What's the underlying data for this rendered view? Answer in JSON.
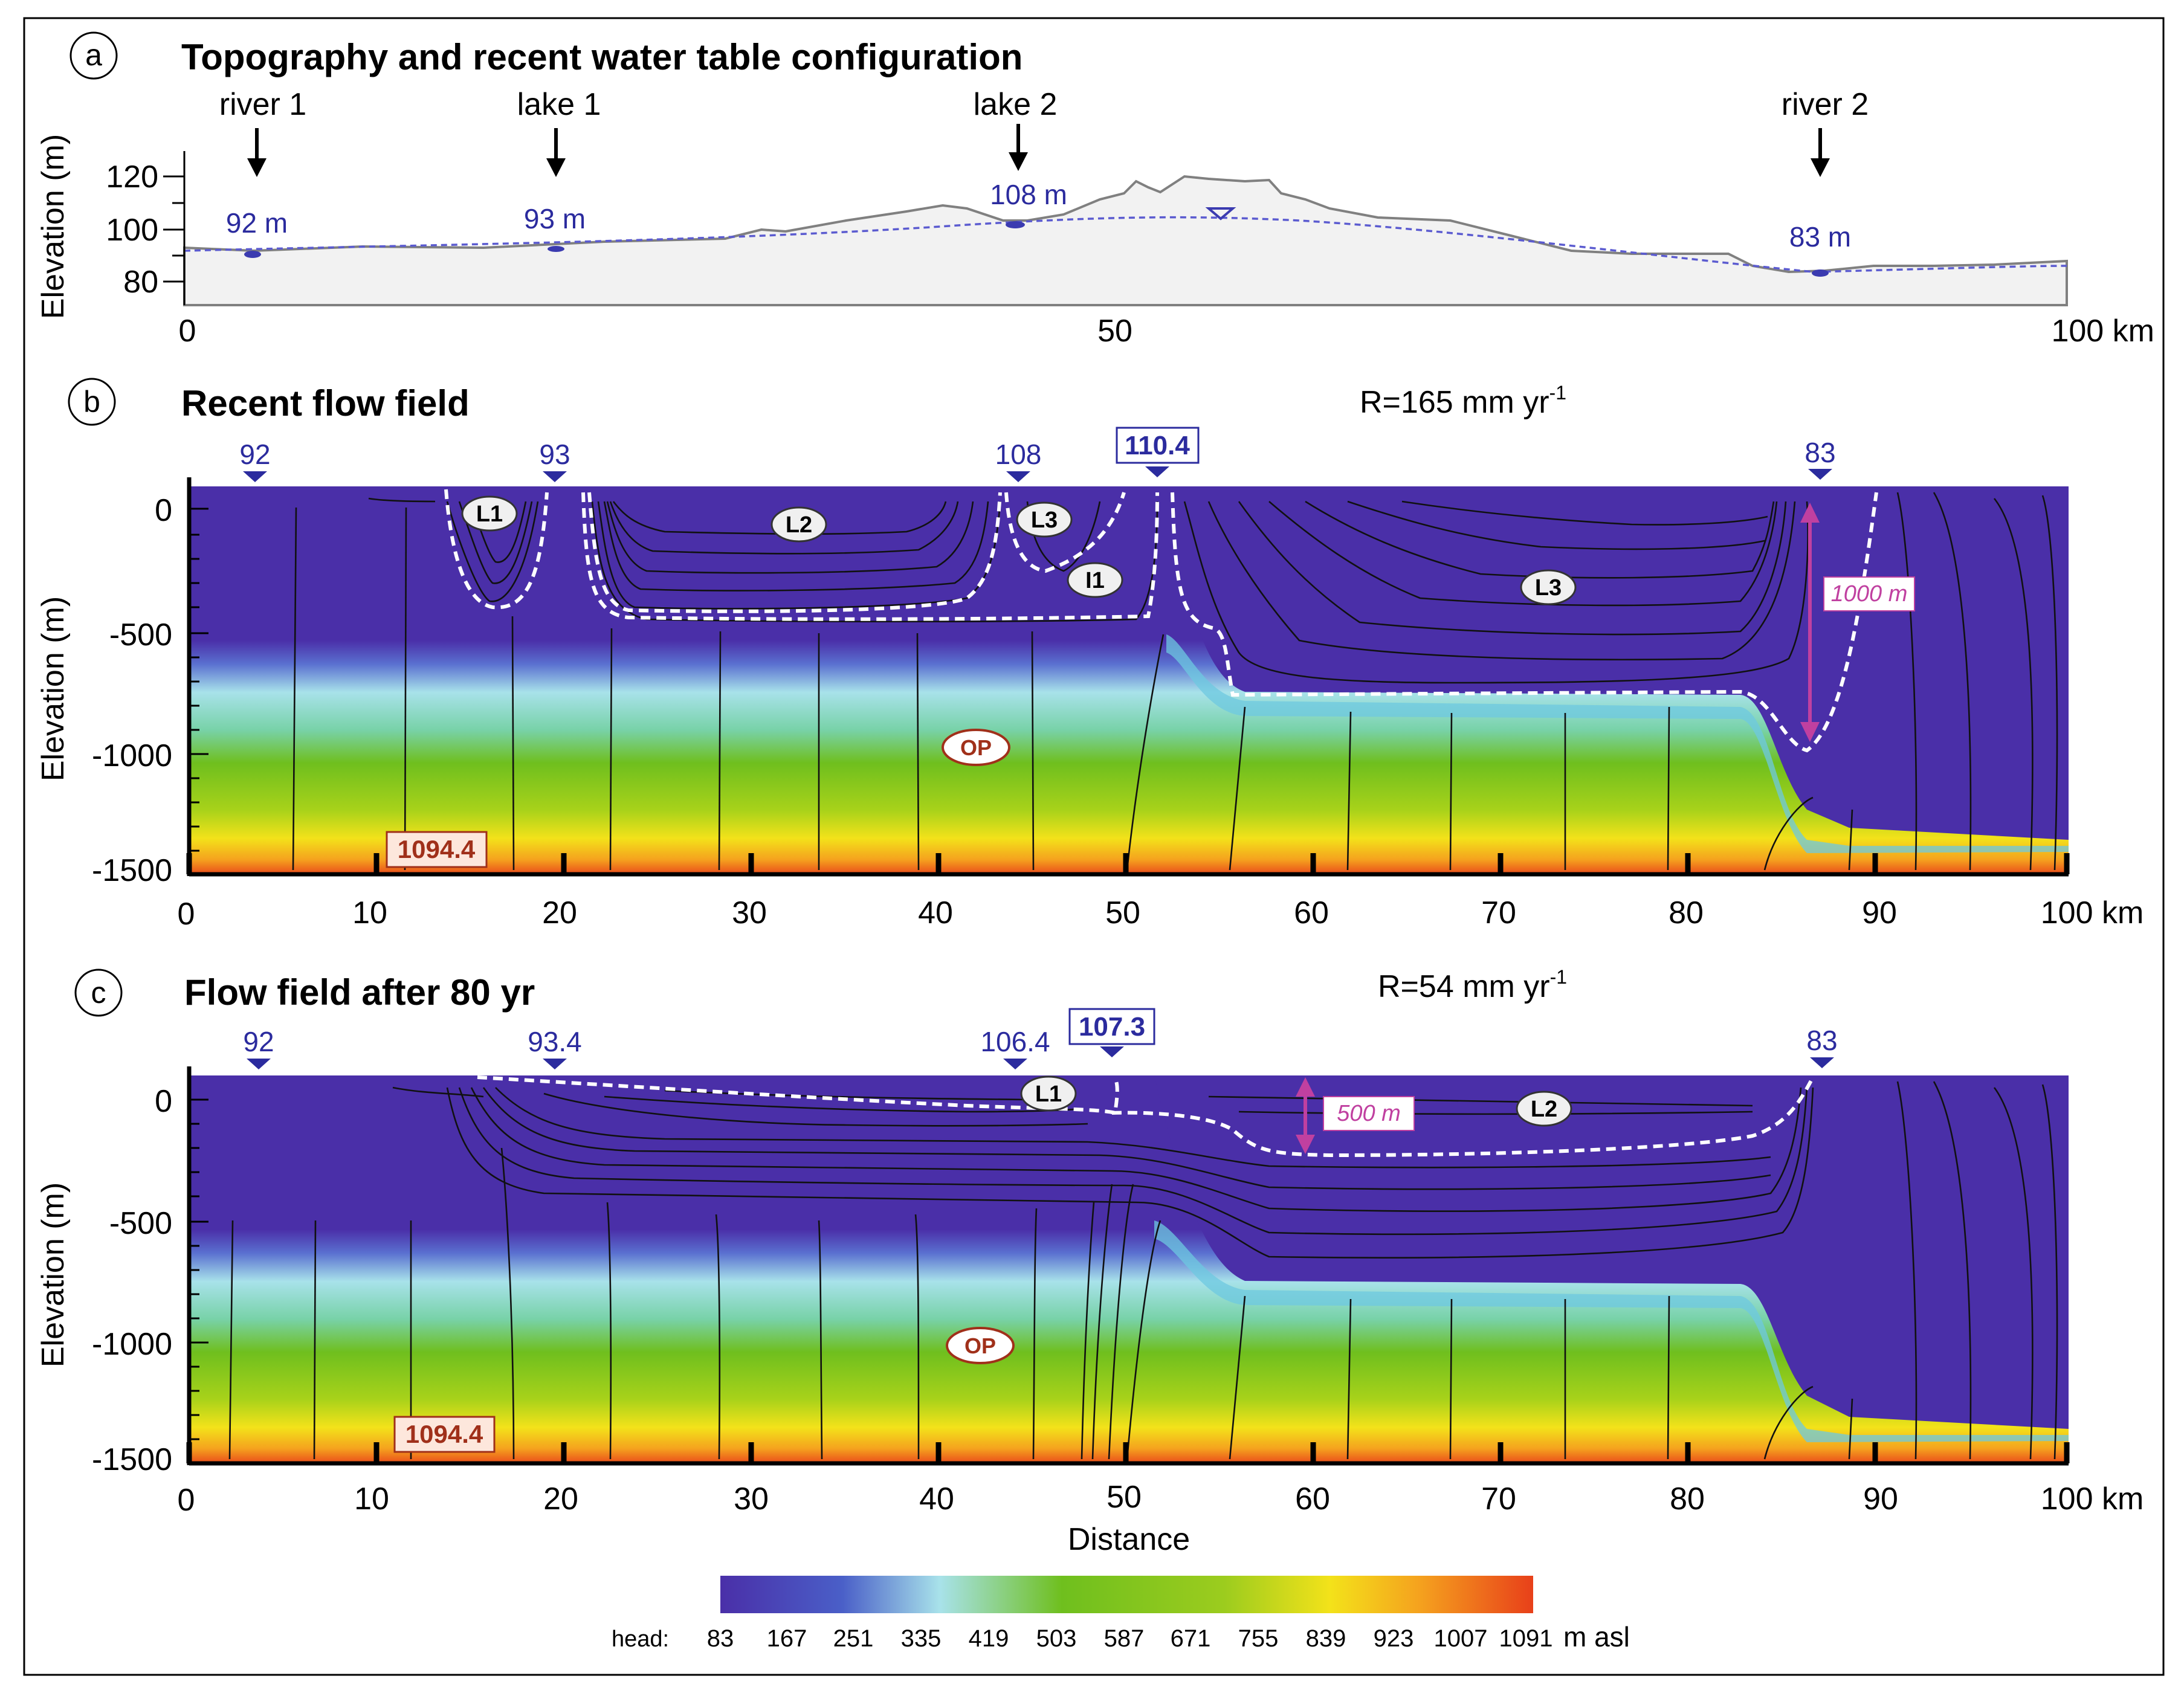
{
  "panels": [
    {
      "letter": "a",
      "title": "Topography and recent water table configuration"
    },
    {
      "letter": "b",
      "title": "Recent flow field",
      "recharge": "R=165 mm yr",
      "recharge_sup": "-1"
    },
    {
      "letter": "c",
      "title": "Flow field after 80 yr",
      "recharge": "R=54 mm yr",
      "recharge_sup": "-1"
    }
  ],
  "topography": {
    "ylabel": "Elevation (m)",
    "yticks": [
      "120",
      "100",
      "80"
    ],
    "xticks": [
      "0",
      "50",
      "100 km"
    ],
    "features": [
      {
        "name": "river 1",
        "elev": "92 m"
      },
      {
        "name": "lake 1",
        "elev": "93 m"
      },
      {
        "name": "lake 2",
        "elev": "108 m"
      },
      {
        "name": "river 2",
        "elev": "83 m"
      }
    ]
  },
  "section": {
    "ylabel": "Elevation (m)",
    "yticks": [
      "0",
      "-500",
      "-1000",
      "-1500"
    ],
    "xticks": [
      "0",
      "10",
      "20",
      "30",
      "40",
      "50",
      "60",
      "70",
      "80",
      "90",
      "100 km"
    ]
  },
  "panel_b": {
    "heads": [
      "92",
      "93",
      "108",
      "83"
    ],
    "max_head": "110.4",
    "cells": [
      "L1",
      "L2",
      "L3",
      "I1",
      "L3"
    ],
    "op": "OP",
    "bottom_head": "1094.4",
    "depth": "1000 m"
  },
  "panel_c": {
    "heads": [
      "92",
      "93.4",
      "106.4",
      "83"
    ],
    "max_head": "107.3",
    "cells": [
      "L1",
      "L2"
    ],
    "op": "OP",
    "bottom_head": "1094.4",
    "depth": "500 m",
    "xlabel": "Distance"
  },
  "colorbar": {
    "label": "head:",
    "ticks": [
      "83",
      "167",
      "251",
      "335",
      "419",
      "503",
      "587",
      "671",
      "755",
      "839",
      "923",
      "1007",
      "1091"
    ],
    "unit": "m asl"
  },
  "colors": {
    "low": "#4a2fa8",
    "cyan": "#a8e2ea",
    "green": "#6fbf1e",
    "yellow": "#f3e21a",
    "orange": "#f5a21e",
    "high": "#e8401a",
    "water": "#3b3bb0",
    "annotation": "#c040a0"
  }
}
